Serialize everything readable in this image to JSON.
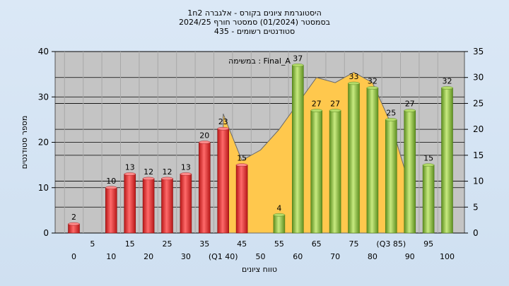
{
  "header": {
    "line1": "היסטוגרמת ציונים בקורס - אלגברה 2ח1",
    "line2": "בסמסטר  (01/2024)  סמסטר חורף  2024/25",
    "line3": "סטודנטים רשומים - 435"
  },
  "chart_data": {
    "type": "bar",
    "title": "היסטוגרמת ציונים בקורס - אלגברה 2ח1",
    "xlabel": "טווח ציונים",
    "ylabel": "מספר סטודנטים",
    "ylim": [
      0,
      40
    ],
    "y2lim": [
      0,
      35
    ],
    "yticks": [
      "0",
      "10",
      "20",
      "30",
      "40"
    ],
    "y2ticks": [
      "0",
      "5",
      "10",
      "15",
      "20",
      "25",
      "30",
      "35"
    ],
    "x_ticks_upper": [
      "5",
      "15",
      "25",
      "35",
      "45",
      "55",
      "65",
      "75",
      "(Q3 85)",
      "95"
    ],
    "x_ticks_lower": [
      "0",
      "10",
      "20",
      "30",
      "(Q1 40)",
      "50",
      "60",
      "70",
      "80",
      "90",
      "100"
    ],
    "categories": [
      "0",
      "5",
      "10",
      "15",
      "20",
      "25",
      "30",
      "35",
      "40",
      "45",
      "50",
      "55",
      "60",
      "65",
      "70",
      "75",
      "80",
      "85",
      "90",
      "95",
      "100"
    ],
    "values": [
      2,
      0,
      10,
      13,
      12,
      12,
      13,
      20,
      23,
      15,
      0,
      4,
      37,
      27,
      27,
      33,
      32,
      25,
      27,
      15,
      32
    ],
    "bar_labels": [
      "2",
      "",
      "10",
      "13",
      "12",
      "12",
      "13",
      "20",
      "23",
      "15",
      "",
      "4",
      "37",
      "27",
      "27",
      "33",
      "32",
      "25",
      "27",
      "15",
      "32"
    ],
    "bar_colors": [
      "red",
      "",
      "red",
      "red",
      "red",
      "red",
      "red",
      "red",
      "red",
      "red",
      "",
      "green",
      "green",
      "green",
      "green",
      "green",
      "green",
      "green",
      "green",
      "green",
      "green"
    ],
    "area_values": [
      null,
      null,
      null,
      null,
      null,
      null,
      null,
      null,
      23,
      14,
      16,
      20,
      25,
      30,
      29,
      31,
      29,
      21,
      9,
      null,
      null
    ],
    "annotation": "במשימה : Final_A",
    "colors": {
      "red": "#e23030",
      "green": "#8cc040",
      "area": "#ffc84d",
      "plot_bg": "#c4c4c4"
    },
    "grid": true
  }
}
